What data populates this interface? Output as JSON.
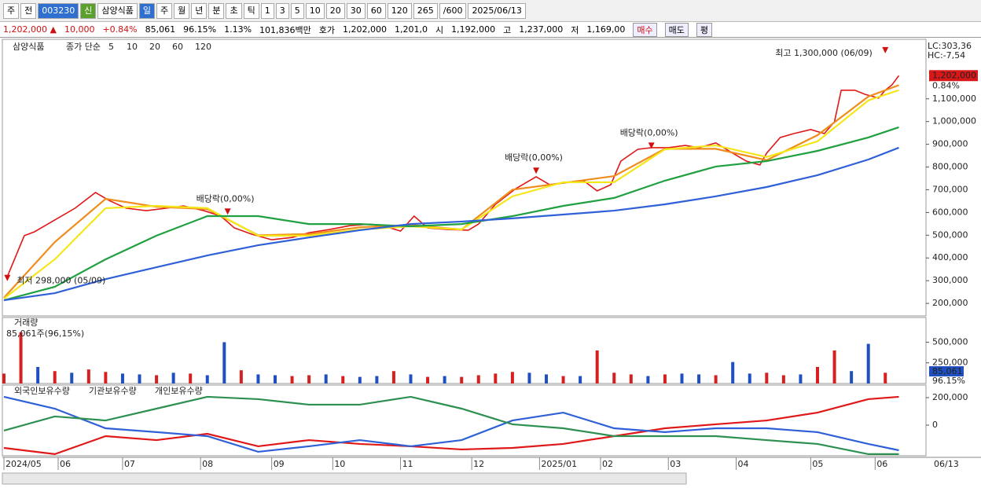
{
  "toolbar": {
    "items": [
      "주",
      "전",
      "003230",
      "신",
      "삼양식품",
      "일",
      "주",
      "월",
      "년",
      "분",
      "초",
      "틱",
      "1",
      "3",
      "5",
      "10",
      "20",
      "30",
      "60",
      "120",
      "265",
      "/600",
      "2025/06/13"
    ]
  },
  "quote": {
    "items": [
      "1,202,000 ▲",
      "10,000",
      "+0.84%",
      "85,061",
      "96.15%",
      "1.13%",
      "101,836백만",
      "호가",
      "1,202,000",
      "1,201,0",
      "시",
      "1,192,000",
      "고",
      "1,237,000",
      "저",
      "1,169,00",
      "매수",
      "매도",
      "평"
    ]
  },
  "chart_data": [
    {
      "type": "line",
      "label": "삼양식품",
      "legend_title": "종가 단순",
      "xlim": [
        0,
        272
      ],
      "xticks": [
        {
          "value": 0,
          "label": "2024/05"
        },
        {
          "value": 16,
          "label": "06"
        },
        {
          "value": 35,
          "label": "07"
        },
        {
          "value": 58,
          "label": "08"
        },
        {
          "value": 79,
          "label": "09"
        },
        {
          "value": 97,
          "label": "10"
        },
        {
          "value": 117,
          "label": "11"
        },
        {
          "value": 138,
          "label": "12"
        },
        {
          "value": 158,
          "label": "2025/01"
        },
        {
          "value": 176,
          "label": "02"
        },
        {
          "value": 196,
          "label": "03"
        },
        {
          "value": 216,
          "label": "04"
        },
        {
          "value": 238,
          "label": "05"
        },
        {
          "value": 257,
          "label": "06"
        }
      ],
      "xend_label": "06/13",
      "ylim": [
        145000,
        1355000
      ],
      "yticks": [
        {
          "value": 200000,
          "label": "200,000"
        },
        {
          "value": 300000,
          "label": "300,000"
        },
        {
          "value": 400000,
          "label": "400,000"
        },
        {
          "value": 500000,
          "label": "500,000"
        },
        {
          "value": 600000,
          "label": "600,000"
        },
        {
          "value": 700000,
          "label": "700,000"
        },
        {
          "value": 800000,
          "label": "800,000"
        },
        {
          "value": 900000,
          "label": "900,000"
        },
        {
          "value": 1000000,
          "label": "1,000,000"
        },
        {
          "value": 1100000,
          "label": "1,100,000"
        }
      ],
      "last_price": {
        "value": 1202000,
        "label": "1,202,000"
      },
      "change_label": "0.84%",
      "lc": "LC:303,36",
      "hc": "HC:-7,54",
      "series": [
        {
          "name": "5",
          "color": "#e01818",
          "x": [
            1,
            6,
            9,
            15,
            21,
            27,
            31,
            36,
            42,
            48,
            53,
            59,
            64,
            68,
            73,
            79,
            85,
            90,
            96,
            102,
            108,
            114,
            117,
            121,
            125,
            131,
            137,
            140,
            145,
            151,
            157,
            161,
            166,
            171,
            175,
            179,
            182,
            187,
            191,
            196,
            201,
            205,
            210,
            215,
            219,
            223,
            225,
            229,
            233,
            238,
            242,
            245,
            247,
            251,
            254,
            258,
            260,
            262,
            264
          ],
          "values": [
            318000,
            498000,
            515000,
            567000,
            619000,
            688000,
            653000,
            619000,
            608000,
            619000,
            629000,
            608000,
            584000,
            532000,
            505000,
            480000,
            490000,
            511000,
            525000,
            542000,
            549000,
            532000,
            518000,
            584000,
            532000,
            525000,
            522000,
            549000,
            636000,
            705000,
            757000,
            722000,
            733000,
            740000,
            695000,
            722000,
            826000,
            878000,
            885000,
            885000,
            895000,
            885000,
            906000,
            861000,
            826000,
            809000,
            861000,
            930000,
            947000,
            965000,
            947000,
            999000,
            1138000,
            1138000,
            1120000,
            1103000,
            1138000,
            1162000,
            1202000
          ]
        },
        {
          "name": "10",
          "color": "#f08c1c",
          "x": [
            0,
            15,
            30,
            45,
            60,
            75,
            90,
            105,
            120,
            135,
            150,
            165,
            180,
            195,
            210,
            225,
            240,
            255,
            264
          ],
          "values": [
            225000,
            470000,
            660000,
            625000,
            615000,
            500000,
            505000,
            535000,
            545000,
            525000,
            700000,
            730000,
            760000,
            880000,
            880000,
            830000,
            940000,
            1110000,
            1160000
          ]
        },
        {
          "name": "20",
          "color": "#f5e61a",
          "x": [
            0,
            15,
            30,
            45,
            60,
            75,
            90,
            105,
            120,
            135,
            150,
            165,
            180,
            195,
            210,
            225,
            240,
            255,
            264
          ],
          "values": [
            221000,
            394000,
            619000,
            629000,
            619000,
            498000,
            498000,
            525000,
            539000,
            525000,
            671000,
            733000,
            733000,
            878000,
            895000,
            844000,
            913000,
            1093000,
            1138000
          ]
        },
        {
          "name": "60",
          "color": "#20a040",
          "x": [
            0,
            15,
            30,
            45,
            60,
            75,
            90,
            105,
            120,
            135,
            150,
            165,
            180,
            195,
            210,
            225,
            240,
            255,
            264
          ],
          "values": [
            214000,
            273000,
            394000,
            498000,
            584000,
            584000,
            549000,
            549000,
            539000,
            549000,
            584000,
            629000,
            664000,
            740000,
            802000,
            826000,
            871000,
            930000,
            975000
          ]
        },
        {
          "name": "120",
          "color": "#3060d8",
          "x": [
            0,
            15,
            30,
            45,
            60,
            75,
            90,
            105,
            120,
            135,
            150,
            165,
            180,
            195,
            210,
            225,
            240,
            255,
            264
          ],
          "values": [
            214000,
            245000,
            307000,
            359000,
            411000,
            456000,
            490000,
            522000,
            549000,
            560000,
            574000,
            591000,
            608000,
            636000,
            671000,
            712000,
            764000,
            833000,
            885000
          ]
        }
      ],
      "annotations": [
        {
          "text": "최고 1,300,000 (06/09)",
          "x": 260,
          "y": 1300000
        },
        {
          "text": "최저 298,000 (05/09)",
          "x": 1,
          "y": 298000
        },
        {
          "text": "배당락(0,00%)",
          "x": 157,
          "y": 770000
        },
        {
          "text": "배당락(0,00%)",
          "x": 191,
          "y": 880000
        },
        {
          "text": "배당락(0,00%)",
          "x": 66,
          "y": 590000
        }
      ]
    },
    {
      "type": "bar",
      "title": "거래량",
      "subtitle": "85,061주(96,15%)",
      "xlim": [
        0,
        272
      ],
      "x": [
        0,
        5,
        10,
        15,
        20,
        25,
        30,
        35,
        40,
        45,
        50,
        55,
        60,
        65,
        70,
        75,
        80,
        85,
        90,
        95,
        100,
        105,
        110,
        115,
        120,
        125,
        130,
        135,
        140,
        145,
        150,
        155,
        160,
        165,
        170,
        175,
        180,
        185,
        190,
        195,
        200,
        205,
        210,
        215,
        220,
        225,
        230,
        235,
        240,
        245,
        250,
        255,
        260
      ],
      "values": [
        120000,
        620000,
        200000,
        150000,
        130000,
        170000,
        140000,
        120000,
        110000,
        100000,
        130000,
        120000,
        100000,
        500000,
        160000,
        110000,
        100000,
        90000,
        100000,
        110000,
        90000,
        80000,
        90000,
        150000,
        110000,
        80000,
        90000,
        80000,
        100000,
        120000,
        140000,
        130000,
        110000,
        90000,
        90000,
        400000,
        130000,
        110000,
        90000,
        110000,
        120000,
        110000,
        100000,
        260000,
        120000,
        130000,
        100000,
        110000,
        200000,
        400000,
        150000,
        480000,
        130000
      ],
      "colors": [
        "#d62020",
        "#d62020",
        "#2050c0",
        "#d62020",
        "#2050c0",
        "#d62020",
        "#d62020",
        "#2050c0",
        "#2050c0",
        "#d62020",
        "#2050c0",
        "#d62020",
        "#2050c0",
        "#2050c0",
        "#d62020",
        "#2050c0",
        "#2050c0",
        "#d62020",
        "#d62020",
        "#2050c0",
        "#d62020",
        "#2050c0",
        "#2050c0",
        "#d62020",
        "#2050c0",
        "#d62020",
        "#2050c0",
        "#d62020",
        "#d62020",
        "#d62020",
        "#d62020",
        "#2050c0",
        "#2050c0",
        "#d62020",
        "#2050c0",
        "#d62020",
        "#d62020",
        "#d62020",
        "#2050c0",
        "#d62020",
        "#2050c0",
        "#2050c0",
        "#d62020",
        "#2050c0",
        "#2050c0",
        "#d62020",
        "#d62020",
        "#2050c0",
        "#d62020",
        "#d62020",
        "#2050c0",
        "#2050c0",
        "#d62020"
      ],
      "ylim": [
        0,
        780000
      ],
      "yticks": [
        {
          "value": 500000,
          "label": "500,000"
        },
        {
          "value": 250000,
          "label": "250,000"
        }
      ],
      "last_value": {
        "value": 85061,
        "label": "85,061"
      },
      "ratio_label": "96.15%"
    },
    {
      "type": "line",
      "xlim": [
        0,
        272
      ],
      "ylim": [
        -223000,
        280000
      ],
      "yticks": [
        {
          "value": 200000,
          "label": "200,000"
        },
        0
      ],
      "x": [
        0,
        15,
        30,
        45,
        60,
        75,
        90,
        105,
        120,
        135,
        150,
        165,
        180,
        195,
        210,
        225,
        240,
        255,
        264
      ],
      "series": [
        {
          "name": "외국인보유수량",
          "color": "#e01818",
          "values": [
            -166000,
            -211000,
            -80000,
            -109000,
            -63000,
            -154000,
            -109000,
            -137000,
            -154000,
            -177000,
            -166000,
            -137000,
            -80000,
            -23000,
            6000,
            34000,
            91000,
            189000,
            206000
          ]
        },
        {
          "name": "기관보유수량",
          "color": "#3060d8",
          "values": [
            206000,
            120000,
            -23000,
            -51000,
            -80000,
            -194000,
            -154000,
            -109000,
            -154000,
            -109000,
            34000,
            91000,
            -23000,
            -51000,
            -23000,
            -23000,
            -51000,
            -137000,
            -183000
          ]
        },
        {
          "name": "개인보유수량",
          "color": "#2e9050",
          "values": [
            -40000,
            63000,
            34000,
            120000,
            206000,
            189000,
            149000,
            149000,
            206000,
            120000,
            6000,
            -23000,
            -80000,
            -80000,
            -80000,
            -109000,
            -137000,
            -211000,
            -211000
          ]
        }
      ]
    }
  ]
}
